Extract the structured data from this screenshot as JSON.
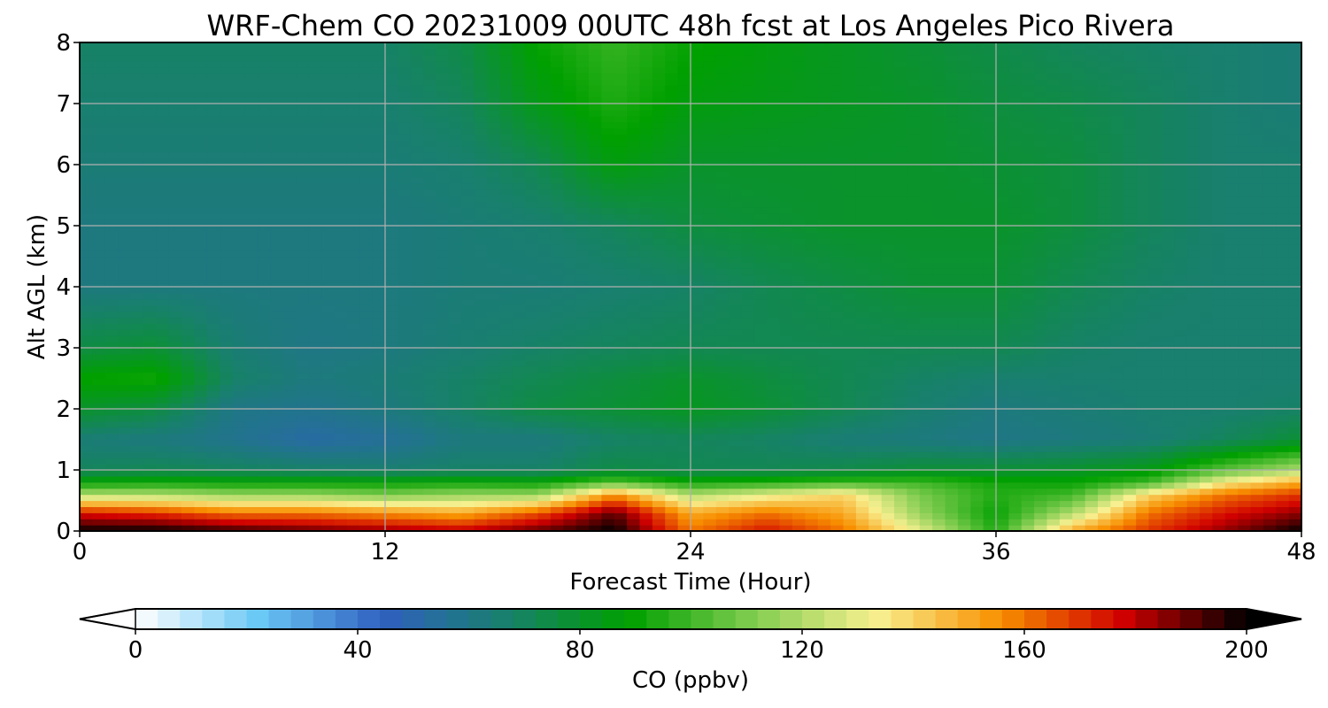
{
  "chart_data": {
    "type": "heatmap",
    "title": "WRF-Chem CO  20231009 00UTC 48h fcst at Los Angeles Pico Rivera",
    "xlabel": "Forecast Time (Hour)",
    "ylabel": "Alt AGL (km)",
    "xlim": [
      0,
      48
    ],
    "ylim": [
      0,
      8
    ],
    "xticks": [
      "0",
      "12",
      "24",
      "36",
      "48"
    ],
    "yticks": [
      "0",
      "1",
      "2",
      "3",
      "4",
      "5",
      "6",
      "7",
      "8"
    ],
    "grid": true,
    "colorbar": {
      "label": "CO  (ppbv)",
      "range": [
        0,
        200
      ],
      "ticks": [
        "0",
        "40",
        "80",
        "120",
        "160",
        "200"
      ],
      "extend": "both"
    },
    "x": [
      0,
      3,
      6,
      9,
      12,
      15,
      18,
      21,
      24,
      27,
      30,
      33,
      36,
      39,
      42,
      45,
      48
    ],
    "y": [
      0,
      0.3,
      0.6,
      0.8,
      1,
      1.5,
      2,
      2.5,
      3,
      4,
      5,
      6,
      7,
      8
    ],
    "z": [
      [
        200,
        200,
        195,
        190,
        185,
        180,
        190,
        200,
        160,
        175,
        160,
        130,
        95,
        150,
        170,
        185,
        200
      ],
      [
        175,
        170,
        160,
        160,
        155,
        150,
        165,
        190,
        150,
        160,
        150,
        115,
        90,
        120,
        160,
        175,
        185
      ],
      [
        120,
        120,
        115,
        115,
        110,
        115,
        115,
        155,
        120,
        130,
        140,
        110,
        95,
        100,
        140,
        160,
        170
      ],
      [
        90,
        92,
        90,
        90,
        90,
        92,
        90,
        105,
        92,
        95,
        100,
        100,
        92,
        90,
        100,
        135,
        150
      ],
      [
        70,
        72,
        70,
        68,
        66,
        68,
        68,
        75,
        72,
        72,
        74,
        78,
        78,
        80,
        85,
        105,
        120
      ],
      [
        64,
        62,
        58,
        52,
        55,
        62,
        62,
        68,
        70,
        68,
        64,
        62,
        60,
        62,
        64,
        70,
        78
      ],
      [
        80,
        75,
        60,
        58,
        62,
        68,
        75,
        78,
        82,
        78,
        72,
        66,
        62,
        64,
        66,
        66,
        68
      ],
      [
        90,
        92,
        68,
        62,
        64,
        68,
        72,
        76,
        80,
        76,
        72,
        68,
        66,
        66,
        66,
        66,
        66
      ],
      [
        75,
        78,
        65,
        60,
        62,
        65,
        68,
        70,
        72,
        72,
        72,
        72,
        72,
        68,
        66,
        66,
        66
      ],
      [
        62,
        62,
        62,
        62,
        62,
        64,
        64,
        66,
        68,
        72,
        75,
        78,
        78,
        72,
        68,
        66,
        66
      ],
      [
        62,
        62,
        62,
        62,
        62,
        64,
        66,
        70,
        76,
        78,
        80,
        80,
        80,
        76,
        70,
        66,
        66
      ],
      [
        64,
        64,
        64,
        64,
        64,
        66,
        72,
        86,
        80,
        80,
        80,
        80,
        78,
        76,
        70,
        66,
        66
      ],
      [
        66,
        66,
        66,
        66,
        66,
        70,
        84,
        94,
        86,
        84,
        82,
        80,
        76,
        74,
        70,
        66,
        64
      ],
      [
        68,
        68,
        68,
        68,
        68,
        74,
        90,
        98,
        90,
        86,
        82,
        78,
        74,
        70,
        68,
        66,
        64
      ]
    ],
    "colors": [
      "#ffffff",
      "#6ac8f5",
      "#3060c0",
      "#18806c",
      "#00a000",
      "#80cc50",
      "#f8f090",
      "#f89000",
      "#d00000",
      "#000000"
    ]
  }
}
